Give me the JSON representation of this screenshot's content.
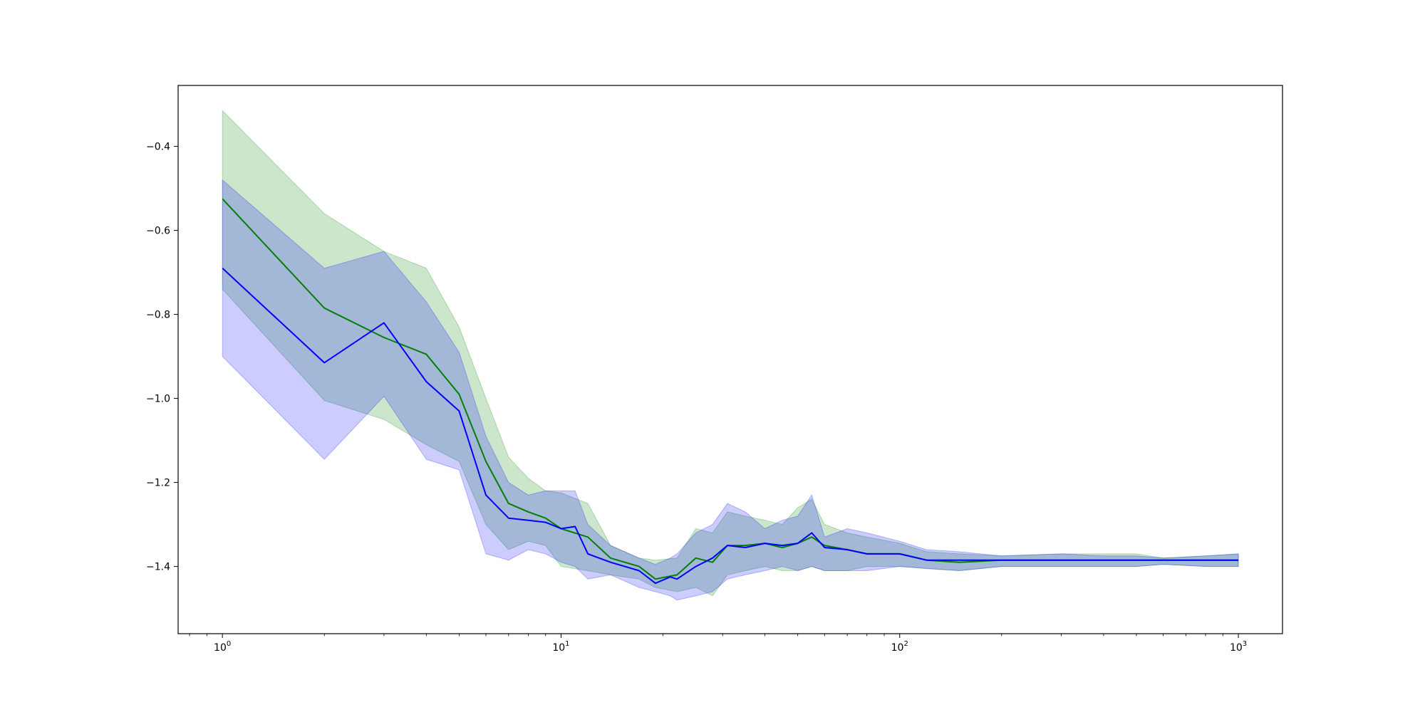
{
  "chart_data": {
    "type": "line",
    "title": "",
    "xlabel": "",
    "ylabel": "",
    "xscale": "log",
    "xlim": [
      0.74,
      1350
    ],
    "ylim": [
      -1.56,
      -0.255
    ],
    "grid": false,
    "legend": "none",
    "x_ticks": [
      {
        "value": 1,
        "base": "10",
        "exp": "0"
      },
      {
        "value": 10,
        "base": "10",
        "exp": "1"
      },
      {
        "value": 100,
        "base": "10",
        "exp": "2"
      },
      {
        "value": 1000,
        "base": "10",
        "exp": "3"
      }
    ],
    "y_ticks": [
      {
        "value": -0.4,
        "label": "−0.4"
      },
      {
        "value": -0.6,
        "label": "−0.6"
      },
      {
        "value": -0.8,
        "label": "−0.8"
      },
      {
        "value": -1.0,
        "label": "−1.0"
      },
      {
        "value": -1.2,
        "label": "−1.2"
      },
      {
        "value": -1.4,
        "label": "−1.4"
      }
    ],
    "series": [
      {
        "color": "#008000",
        "band_color": "#008000",
        "band_opacity": 0.2,
        "x": [
          1,
          2,
          3,
          4,
          5,
          6,
          7,
          8,
          9,
          10,
          12,
          14,
          17,
          19,
          22,
          25,
          28,
          31,
          35,
          40,
          45,
          50,
          55,
          60,
          70,
          80,
          100,
          120,
          150,
          200,
          300,
          400,
          500,
          600,
          800,
          1000
        ],
        "mean": [
          -0.525,
          -0.785,
          -0.855,
          -0.895,
          -0.99,
          -1.15,
          -1.25,
          -1.27,
          -1.285,
          -1.31,
          -1.33,
          -1.38,
          -1.4,
          -1.43,
          -1.42,
          -1.38,
          -1.39,
          -1.35,
          -1.35,
          -1.345,
          -1.355,
          -1.345,
          -1.33,
          -1.35,
          -1.36,
          -1.37,
          -1.37,
          -1.385,
          -1.39,
          -1.385,
          -1.385,
          -1.385,
          -1.385,
          -1.385,
          -1.385,
          -1.385
        ],
        "upper": [
          -0.315,
          -0.56,
          -0.65,
          -0.69,
          -0.83,
          -1.0,
          -1.14,
          -1.19,
          -1.22,
          -1.225,
          -1.25,
          -1.35,
          -1.38,
          -1.385,
          -1.38,
          -1.31,
          -1.32,
          -1.27,
          -1.28,
          -1.29,
          -1.3,
          -1.26,
          -1.24,
          -1.3,
          -1.32,
          -1.33,
          -1.345,
          -1.365,
          -1.37,
          -1.375,
          -1.37,
          -1.37,
          -1.37,
          -1.38,
          -1.375,
          -1.37
        ],
        "lower": [
          -0.74,
          -1.005,
          -1.05,
          -1.11,
          -1.15,
          -1.3,
          -1.36,
          -1.34,
          -1.35,
          -1.4,
          -1.41,
          -1.42,
          -1.43,
          -1.45,
          -1.46,
          -1.45,
          -1.47,
          -1.42,
          -1.41,
          -1.4,
          -1.41,
          -1.41,
          -1.4,
          -1.41,
          -1.41,
          -1.4,
          -1.4,
          -1.405,
          -1.41,
          -1.4,
          -1.4,
          -1.4,
          -1.4,
          -1.395,
          -1.4,
          -1.4
        ]
      },
      {
        "color": "#0000ff",
        "band_color": "#0000ff",
        "band_opacity": 0.2,
        "x": [
          1,
          2,
          3,
          4,
          5,
          6,
          7,
          8,
          9,
          10,
          11,
          12,
          14,
          17,
          19,
          21,
          22,
          25,
          28,
          31,
          35,
          40,
          45,
          50,
          55,
          60,
          70,
          80,
          100,
          120,
          150,
          200,
          300,
          400,
          500,
          600,
          800,
          1000
        ],
        "mean": [
          -0.69,
          -0.915,
          -0.82,
          -0.96,
          -1.03,
          -1.23,
          -1.285,
          -1.29,
          -1.295,
          -1.31,
          -1.305,
          -1.37,
          -1.39,
          -1.41,
          -1.44,
          -1.425,
          -1.43,
          -1.4,
          -1.38,
          -1.35,
          -1.355,
          -1.345,
          -1.35,
          -1.345,
          -1.32,
          -1.355,
          -1.36,
          -1.37,
          -1.37,
          -1.385,
          -1.385,
          -1.385,
          -1.385,
          -1.385,
          -1.385,
          -1.385,
          -1.385,
          -1.385
        ],
        "upper": [
          -0.48,
          -0.69,
          -0.65,
          -0.77,
          -0.89,
          -1.09,
          -1.2,
          -1.23,
          -1.22,
          -1.22,
          -1.22,
          -1.3,
          -1.35,
          -1.38,
          -1.395,
          -1.38,
          -1.37,
          -1.32,
          -1.3,
          -1.25,
          -1.27,
          -1.31,
          -1.29,
          -1.28,
          -1.23,
          -1.33,
          -1.31,
          -1.32,
          -1.34,
          -1.36,
          -1.365,
          -1.375,
          -1.37,
          -1.375,
          -1.375,
          -1.38,
          -1.375,
          -1.37
        ],
        "lower": [
          -0.9,
          -1.145,
          -0.995,
          -1.145,
          -1.17,
          -1.37,
          -1.385,
          -1.36,
          -1.37,
          -1.39,
          -1.4,
          -1.43,
          -1.42,
          -1.45,
          -1.46,
          -1.47,
          -1.48,
          -1.47,
          -1.46,
          -1.43,
          -1.42,
          -1.41,
          -1.4,
          -1.41,
          -1.4,
          -1.41,
          -1.41,
          -1.41,
          -1.4,
          -1.405,
          -1.41,
          -1.4,
          -1.4,
          -1.4,
          -1.4,
          -1.395,
          -1.4,
          -1.4
        ]
      }
    ]
  }
}
